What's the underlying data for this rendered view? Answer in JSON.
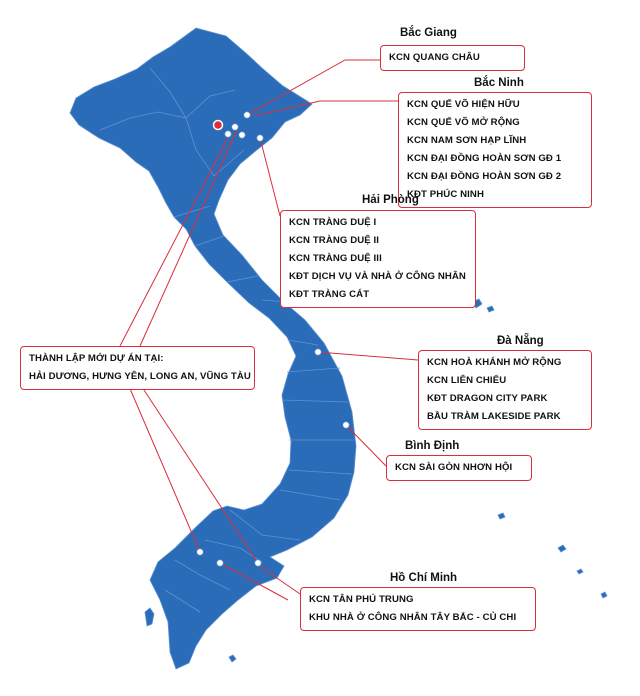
{
  "regions": {
    "bac_giang": {
      "title": "Bắc Giang",
      "items": [
        "KCN QUANG CHÂU"
      ]
    },
    "bac_ninh": {
      "title": "Bắc Ninh",
      "items": [
        "KCN QUẾ VÕ HIỆN HỮU",
        "KCN QUẾ VÕ MỞ RỘNG",
        "KCN NAM SƠN HẠP LĨNH",
        "KCN ĐẠI ĐỒNG HOÀN SƠN GĐ 1",
        "KCN ĐẠI ĐỒNG HOÀN SƠN GĐ 2",
        "KĐT PHÚC NINH"
      ]
    },
    "hai_phong": {
      "title": "Hải Phòng",
      "items": [
        "KCN TRÀNG DUỆ I",
        "KCN TRÀNG DUỆ II",
        "KCN TRÀNG DUỆ III",
        "KĐT DỊCH VỤ VÀ NHÀ Ở CÔNG NHÂN",
        "KĐT TRÀNG CÁT"
      ]
    },
    "da_nang": {
      "title": "Đà Nẵng",
      "items": [
        "KCN HOÀ KHÁNH MỞ RỘNG",
        "KCN LIÊN CHIỂU",
        "KĐT DRAGON CITY PARK",
        "BẦU TRÀM LAKESIDE PARK"
      ]
    },
    "binh_dinh": {
      "title": "Bình Định",
      "items": [
        "KCN SÀI GÒN NHƠN HỘI"
      ]
    },
    "ho_chi_minh": {
      "title": "Hồ Chí Minh",
      "items": [
        "KCN TÂN PHÚ TRUNG",
        "KHU NHÀ Ở CÔNG NHÂN TÂY BẮC - CỦ CHI"
      ]
    },
    "new_projects": {
      "items": [
        "THÀNH LẬP MỚI DỰ ÁN TẠI:",
        "HẢI DƯƠNG, HƯNG YÊN, LONG AN, VŨNG TÀU"
      ]
    }
  },
  "colors": {
    "land": "#2b6cb9",
    "border": "#5f93d3",
    "accent": "#d7303c",
    "marker": "#ffffff"
  }
}
